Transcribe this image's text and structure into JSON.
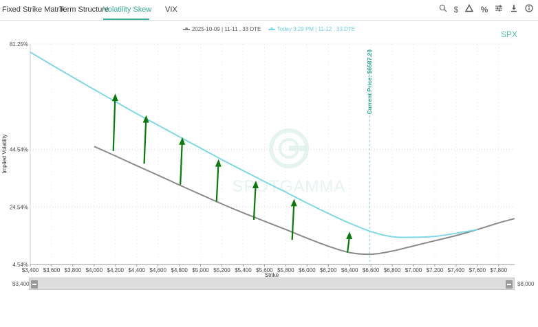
{
  "tabs": [
    {
      "label": "Fixed Strike Matrix",
      "active": false
    },
    {
      "label": "Term Structure",
      "active": false
    },
    {
      "label": "Volatility Skew",
      "active": true
    },
    {
      "label": "VIX",
      "active": false
    }
  ],
  "toolbar_icons": [
    "search-icon",
    "dollar-icon",
    "triangle-icon",
    "percent-icon",
    "sliders-icon",
    "download-icon",
    "info-icon"
  ],
  "ticker": "SPX",
  "colors": {
    "prior": "#8a8a8a",
    "today": "#7fd8e6",
    "arrow": "#0a7a0a",
    "accent": "#36a896"
  },
  "range": {
    "min_label": "$3,400",
    "max_label": "$8,000"
  },
  "chart_data": {
    "type": "line",
    "xlabel": "Strike",
    "ylabel": "Implied Volatility",
    "xlim": [
      3400,
      7950
    ],
    "ylim": [
      4.54,
      81.25
    ],
    "x_ticks": [
      {
        "value": 3400,
        "label": "$3,400"
      },
      {
        "value": 3600,
        "label": "$3,600"
      },
      {
        "value": 3800,
        "label": "$3,800"
      },
      {
        "value": 4000,
        "label": "$4,000"
      },
      {
        "value": 4200,
        "label": "$4,200"
      },
      {
        "value": 4400,
        "label": "$4,400"
      },
      {
        "value": 4600,
        "label": "$4,600"
      },
      {
        "value": 4800,
        "label": "$4,800"
      },
      {
        "value": 5000,
        "label": "$5,000"
      },
      {
        "value": 5200,
        "label": "$5,200"
      },
      {
        "value": 5400,
        "label": "$5,400"
      },
      {
        "value": 5600,
        "label": "$5,600"
      },
      {
        "value": 5800,
        "label": "$5,800"
      },
      {
        "value": 6000,
        "label": "$6,000"
      },
      {
        "value": 6200,
        "label": "$6,200"
      },
      {
        "value": 6400,
        "label": "$6,400"
      },
      {
        "value": 6600,
        "label": "$6,600"
      },
      {
        "value": 6800,
        "label": "$6,800"
      },
      {
        "value": 7000,
        "label": "$7,000"
      },
      {
        "value": 7200,
        "label": "$7,200"
      },
      {
        "value": 7400,
        "label": "$7,400"
      },
      {
        "value": 7600,
        "label": "$7,600"
      },
      {
        "value": 7800,
        "label": "$7,800"
      }
    ],
    "y_ticks": [
      {
        "value": 4.54,
        "label": "4.54%"
      },
      {
        "value": 24.54,
        "label": "24.54%"
      },
      {
        "value": 44.54,
        "label": "44.54%"
      },
      {
        "value": 81.25,
        "label": "81.25%"
      }
    ],
    "series": [
      {
        "name": "2025-10-09 | 11-11 , 33 DTE",
        "x": [
          4000,
          4200,
          4400,
          4600,
          4800,
          5000,
          5200,
          5400,
          5600,
          5800,
          6000,
          6200,
          6400,
          6600,
          6800,
          7000,
          7200,
          7400,
          7600,
          7800,
          7950
        ],
        "values": [
          45.6,
          42.3,
          38.9,
          35.6,
          32.2,
          28.9,
          25.6,
          22.5,
          19.6,
          16.7,
          13.7,
          10.9,
          8.7,
          8.1,
          9.2,
          11.0,
          12.8,
          14.6,
          16.7,
          19.0,
          20.5
        ]
      },
      {
        "name": "Today 3:29 PM | 11-12 , 33 DTE",
        "x": [
          3400,
          3600,
          3800,
          4000,
          4200,
          4400,
          4600,
          4800,
          5000,
          5200,
          5400,
          5600,
          5800,
          6000,
          6200,
          6400,
          6600,
          6800,
          7000,
          7200,
          7400,
          7600
        ],
        "values": [
          78.4,
          74.0,
          69.7,
          65.4,
          61.2,
          57.0,
          53.0,
          49.0,
          45.0,
          41.0,
          37.2,
          33.4,
          29.7,
          25.9,
          22.3,
          18.9,
          16.0,
          14.2,
          14.0,
          14.3,
          15.4,
          16.7
        ]
      }
    ],
    "vertical_line": {
      "x": 6587.2,
      "label": "Current Price: $6587.20"
    },
    "arrows": [
      {
        "x": 4180,
        "from": 44.0,
        "to": 64.0
      },
      {
        "x": 4470,
        "from": 39.6,
        "to": 56.5
      },
      {
        "x": 4810,
        "from": 32.3,
        "to": 48.8
      },
      {
        "x": 5150,
        "from": 26.4,
        "to": 41.2
      },
      {
        "x": 5500,
        "from": 20.1,
        "to": 33.7
      },
      {
        "x": 5860,
        "from": 13.1,
        "to": 27.4
      },
      {
        "x": 6380,
        "from": 8.7,
        "to": 16.0
      }
    ]
  }
}
